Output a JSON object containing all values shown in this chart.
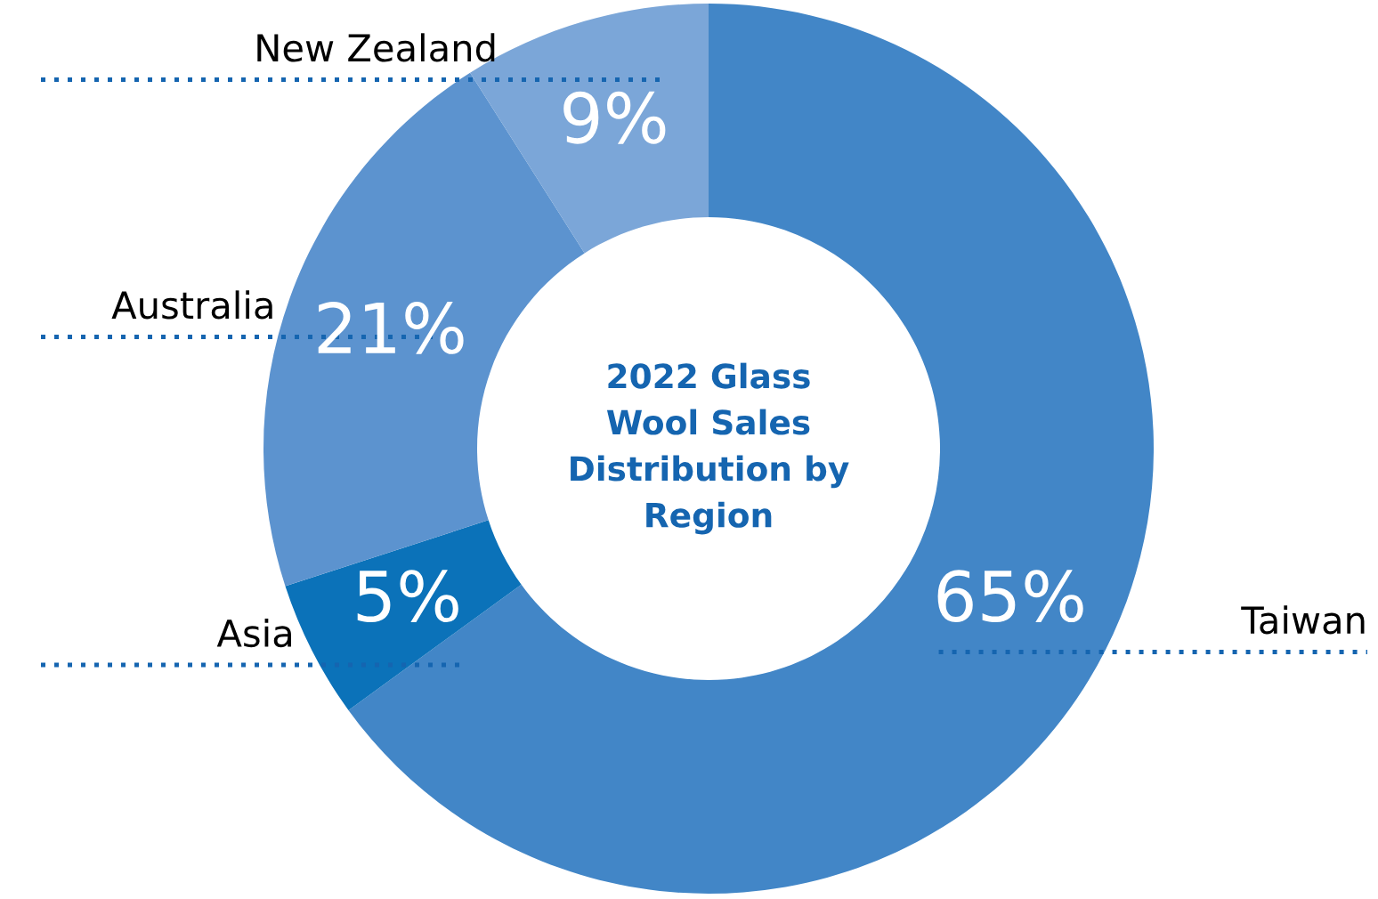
{
  "chart_data": {
    "type": "donut",
    "title": "2022 Glass\nWool Sales\nDistribution by\nRegion",
    "categories": [
      "Taiwan",
      "Asia",
      "Australia",
      "New Zealand"
    ],
    "values": [
      65,
      5,
      21,
      9
    ],
    "colors": [
      "#4286c7",
      "#0b72b9",
      "#5c93cf",
      "#7ba6d8"
    ],
    "value_labels": [
      "65%",
      "5%",
      "21%",
      "9%"
    ],
    "legend": false
  }
}
